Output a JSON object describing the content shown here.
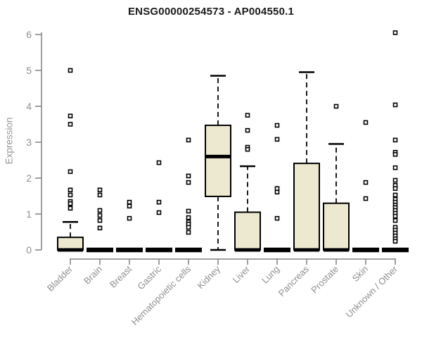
{
  "chart_data": {
    "type": "boxplot",
    "title": "ENSG00000254573 - AP004550.1",
    "ylabel": "Expression",
    "xlabel": "",
    "ylim": [
      0,
      6
    ],
    "yticks": [
      0,
      1,
      2,
      3,
      4,
      5,
      6
    ],
    "grid": false,
    "legend": false,
    "categories": [
      "Bladder",
      "Brain",
      "Breast",
      "Gastric",
      "Hematopoietic cells",
      "Kidney",
      "Liver",
      "Lung",
      "Pancreas",
      "Prostate",
      "Skin",
      "Unknown / Other"
    ],
    "boxes": [
      {
        "category": "Bladder",
        "whisker_low": 0,
        "q1": 0,
        "median": 0,
        "q3": 0.35,
        "whisker_high": 0.78,
        "outliers": [
          5.0,
          3.73,
          3.5,
          2.18,
          1.67,
          1.53,
          1.35,
          1.29,
          1.16
        ]
      },
      {
        "category": "Brain",
        "whisker_low": 0,
        "q1": 0,
        "median": 0,
        "q3": 0,
        "whisker_high": 0,
        "outliers": [
          1.67,
          1.53,
          1.1,
          0.96,
          0.82,
          0.61
        ]
      },
      {
        "category": "Breast",
        "whisker_low": 0,
        "q1": 0,
        "median": 0,
        "q3": 0,
        "whisker_high": 0,
        "outliers": [
          1.33,
          1.22,
          0.88
        ]
      },
      {
        "category": "Gastric",
        "whisker_low": 0,
        "q1": 0,
        "median": 0,
        "q3": 0,
        "whisker_high": 0,
        "outliers": [
          2.43,
          1.33,
          1.04
        ]
      },
      {
        "category": "Hematopoietic cells",
        "whisker_low": 0,
        "q1": 0,
        "median": 0,
        "q3": 0,
        "whisker_high": 0,
        "outliers": [
          3.06,
          2.06,
          1.88,
          1.08,
          0.9,
          0.78,
          0.72,
          0.63,
          0.49
        ]
      },
      {
        "category": "Kidney",
        "whisker_low": 0,
        "q1": 1.49,
        "median": 2.6,
        "q3": 3.47,
        "whisker_high": 4.85,
        "outliers": []
      },
      {
        "category": "Liver",
        "whisker_low": 0,
        "q1": 0,
        "median": 0,
        "q3": 1.05,
        "whisker_high": 2.33,
        "outliers": [
          3.75,
          3.33,
          2.86,
          2.8
        ]
      },
      {
        "category": "Lung",
        "whisker_low": 0,
        "q1": 0,
        "median": 0,
        "q3": 0,
        "whisker_high": 0,
        "outliers": [
          3.47,
          3.08,
          1.71,
          1.61,
          0.88
        ]
      },
      {
        "category": "Pancreas",
        "whisker_low": 0,
        "q1": 0,
        "median": 0,
        "q3": 2.41,
        "whisker_high": 4.95,
        "outliers": []
      },
      {
        "category": "Prostate",
        "whisker_low": 0,
        "q1": 0,
        "median": 0,
        "q3": 1.3,
        "whisker_high": 2.95,
        "outliers": [
          4.0
        ]
      },
      {
        "category": "Skin",
        "whisker_low": 0,
        "q1": 0,
        "median": 0,
        "q3": 0,
        "whisker_high": 0,
        "outliers": [
          3.55,
          1.88,
          1.43
        ]
      },
      {
        "category": "Unknown / Other",
        "whisker_low": 0,
        "q1": 0,
        "median": 0,
        "q3": 0,
        "whisker_high": 0,
        "outliers": [
          6.05,
          4.04,
          3.06,
          2.72,
          2.66,
          2.29,
          1.94,
          1.8,
          1.71,
          1.53,
          1.41,
          1.33,
          1.25,
          1.18,
          1.1,
          1.02,
          0.94,
          0.82,
          0.63,
          0.55,
          0.47,
          0.39,
          0.31,
          0.24
        ]
      }
    ],
    "colors": {
      "box_fill": "#EDE8D0",
      "box_stroke": "#000000",
      "median": "#000000",
      "outlier_fill": "#ffffff",
      "outlier_stroke": "#000000",
      "axis_line": "#808080",
      "tick_label": "#8f8f8f",
      "title_color": "#1a1a1a"
    }
  }
}
